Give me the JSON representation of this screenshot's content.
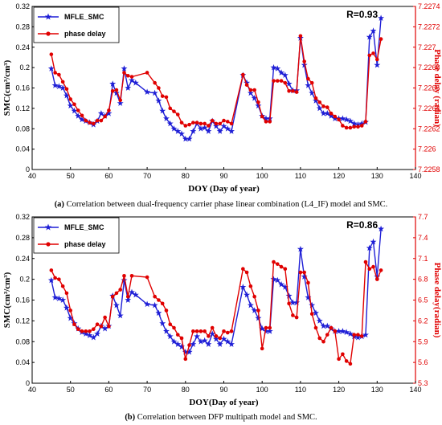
{
  "colors": {
    "smc": "#1f1fd6",
    "phase": "#e00000",
    "axis": "#000000",
    "right_axis": "#e00000"
  },
  "chart_data": [
    {
      "type": "line",
      "xlabel": "DOY (Day of year)",
      "ylabel": "SMC(cm³/cm³)",
      "ylabel_right": "Phase delay (radian)",
      "xlim": [
        40,
        140
      ],
      "ylim": [
        0,
        0.32
      ],
      "ylim_right": [
        7.2258,
        7.2274
      ],
      "xticks": [
        "40",
        "50",
        "60",
        "70",
        "80",
        "90",
        "100",
        "110",
        "120",
        "130",
        "140"
      ],
      "yticks": [
        "0",
        "0.04",
        "0.08",
        "0.12",
        "0.16",
        "0.2",
        "0.24",
        "0.28",
        "0.32"
      ],
      "yticks_right": [
        "7.2258",
        "7.226",
        "7.2262",
        "7.2264",
        "7.2266",
        "7.2268",
        "7.227",
        "7.2272",
        "7.2274"
      ],
      "annotation": "R=0.93",
      "legend_position": "top-left",
      "caption_label": "(a)",
      "caption": " Correlation between dual-frequency carrier phase linear combination (L4_IF) model and SMC.",
      "series": [
        {
          "name": "MFLE_SMC",
          "axis": "left",
          "marker": "star",
          "x": [
            45,
            46,
            47,
            48,
            49,
            50,
            51,
            52,
            53,
            54,
            55,
            56,
            57,
            58,
            59,
            60,
            61,
            62,
            63,
            64,
            65,
            66,
            67,
            70,
            72,
            73,
            74,
            75,
            76,
            77,
            78,
            79,
            80,
            81,
            82,
            83,
            84,
            85,
            86,
            87,
            88,
            89,
            90,
            91,
            92,
            95,
            96,
            97,
            98,
            99,
            100,
            101,
            102,
            103,
            104,
            105,
            106,
            107,
            108,
            109,
            110,
            111,
            112,
            113,
            114,
            115,
            116,
            117,
            118,
            119,
            120,
            121,
            122,
            123,
            124,
            125,
            126,
            127,
            128,
            129,
            130,
            131
          ],
          "y": [
            0.198,
            0.165,
            0.163,
            0.16,
            0.145,
            0.125,
            0.115,
            0.105,
            0.098,
            0.095,
            0.092,
            0.088,
            0.095,
            0.11,
            0.105,
            0.11,
            0.168,
            0.15,
            0.13,
            0.198,
            0.16,
            0.175,
            0.17,
            0.152,
            0.15,
            0.135,
            0.115,
            0.1,
            0.09,
            0.08,
            0.075,
            0.07,
            0.06,
            0.06,
            0.075,
            0.09,
            0.08,
            0.082,
            0.075,
            0.095,
            0.085,
            0.075,
            0.085,
            0.08,
            0.075,
            0.185,
            0.17,
            0.15,
            0.14,
            0.125,
            0.105,
            0.1,
            0.1,
            0.2,
            0.198,
            0.19,
            0.185,
            0.168,
            0.155,
            0.155,
            0.258,
            0.205,
            0.165,
            0.15,
            0.135,
            0.12,
            0.11,
            0.11,
            0.105,
            0.1,
            0.1,
            0.1,
            0.098,
            0.095,
            0.09,
            0.088,
            0.09,
            0.093,
            0.26,
            0.272,
            0.205,
            0.297
          ]
        },
        {
          "name": "phase delay",
          "axis": "right",
          "marker": "circle",
          "x": [
            45,
            46,
            47,
            48,
            49,
            50,
            51,
            52,
            53,
            54,
            55,
            56,
            57,
            58,
            59,
            60,
            61,
            62,
            63,
            64,
            65,
            66,
            70,
            72,
            73,
            74,
            75,
            76,
            77,
            78,
            79,
            80,
            81,
            82,
            83,
            84,
            85,
            86,
            87,
            88,
            89,
            90,
            91,
            92,
            95,
            96,
            97,
            98,
            99,
            100,
            101,
            102,
            103,
            104,
            105,
            106,
            107,
            108,
            109,
            110,
            111,
            112,
            113,
            114,
            115,
            116,
            117,
            118,
            119,
            120,
            121,
            122,
            123,
            124,
            125,
            126,
            127,
            128,
            129,
            130,
            131
          ],
          "y": [
            7.22693,
            7.22675,
            7.22673,
            7.22666,
            7.22659,
            7.22649,
            7.22644,
            7.22638,
            7.22633,
            7.22628,
            7.22626,
            7.22625,
            7.22628,
            7.22628,
            7.22632,
            7.22638,
            7.22657,
            7.22658,
            7.22648,
            7.22675,
            7.22672,
            7.22671,
            7.22675,
            7.22665,
            7.2266,
            7.22652,
            7.22651,
            7.2264,
            7.22637,
            7.22634,
            7.22626,
            7.22623,
            7.22624,
            7.22626,
            7.22626,
            7.22625,
            7.22625,
            7.22623,
            7.22628,
            7.22625,
            7.22625,
            7.22628,
            7.22627,
            7.22625,
            7.22673,
            7.22663,
            7.22658,
            7.22658,
            7.22646,
            7.22632,
            7.22627,
            7.22627,
            7.22667,
            7.22667,
            7.22667,
            7.22665,
            7.22657,
            7.22657,
            7.22656,
            7.22711,
            7.22686,
            7.22669,
            7.22665,
            7.2265,
            7.22646,
            7.22642,
            7.22641,
            7.22635,
            7.22632,
            7.22629,
            7.22623,
            7.22621,
            7.22621,
            7.22622,
            7.22622,
            7.22623,
            7.22627,
            7.22692,
            7.22694,
            7.22688,
            7.22708
          ]
        }
      ]
    },
    {
      "type": "line",
      "xlabel": "DOY(Day of year)",
      "ylabel": "SMC(cm³/cm³)",
      "ylabel_right": "Phase delay(radian)",
      "xlim": [
        40,
        140
      ],
      "ylim": [
        0,
        0.32
      ],
      "ylim_right": [
        5.3,
        7.7
      ],
      "xticks": [
        "40",
        "50",
        "60",
        "70",
        "80",
        "90",
        "100",
        "110",
        "120",
        "130",
        "140"
      ],
      "yticks": [
        "0",
        "0.04",
        "0.08",
        "0.12",
        "0.16",
        "0.2",
        "0.24",
        "0.28",
        "0.32"
      ],
      "yticks_right": [
        "5.3",
        "5.6",
        "5.9",
        "6.2",
        "6.5",
        "6.8",
        "7.1",
        "7.4",
        "7.7"
      ],
      "annotation": "R=0.86",
      "legend_position": "top-left",
      "caption_label": "(b)",
      "caption": " Correlation between DFP multipath model and SMC.",
      "series": [
        {
          "name": "MFLE_SMC",
          "axis": "left",
          "marker": "star",
          "x": [
            45,
            46,
            47,
            48,
            49,
            50,
            51,
            52,
            53,
            54,
            55,
            56,
            57,
            58,
            59,
            60,
            61,
            62,
            63,
            64,
            65,
            66,
            67,
            70,
            72,
            73,
            74,
            75,
            76,
            77,
            78,
            79,
            80,
            81,
            82,
            83,
            84,
            85,
            86,
            87,
            88,
            89,
            90,
            91,
            92,
            95,
            96,
            97,
            98,
            99,
            100,
            101,
            102,
            103,
            104,
            105,
            106,
            107,
            108,
            109,
            110,
            111,
            112,
            113,
            114,
            115,
            116,
            117,
            118,
            119,
            120,
            121,
            122,
            123,
            124,
            125,
            126,
            127,
            128,
            129,
            130,
            131
          ],
          "y": [
            0.198,
            0.165,
            0.163,
            0.16,
            0.145,
            0.125,
            0.115,
            0.105,
            0.098,
            0.095,
            0.092,
            0.088,
            0.095,
            0.11,
            0.105,
            0.11,
            0.168,
            0.15,
            0.13,
            0.198,
            0.16,
            0.175,
            0.17,
            0.152,
            0.15,
            0.135,
            0.115,
            0.1,
            0.09,
            0.08,
            0.075,
            0.07,
            0.06,
            0.06,
            0.075,
            0.09,
            0.08,
            0.082,
            0.075,
            0.095,
            0.085,
            0.075,
            0.085,
            0.08,
            0.075,
            0.185,
            0.17,
            0.15,
            0.14,
            0.125,
            0.105,
            0.1,
            0.1,
            0.2,
            0.198,
            0.19,
            0.185,
            0.168,
            0.155,
            0.155,
            0.258,
            0.205,
            0.165,
            0.15,
            0.135,
            0.12,
            0.11,
            0.11,
            0.105,
            0.1,
            0.1,
            0.1,
            0.098,
            0.095,
            0.09,
            0.088,
            0.09,
            0.093,
            0.26,
            0.272,
            0.205,
            0.297
          ]
        },
        {
          "name": "phase delay",
          "axis": "right",
          "marker": "circle",
          "x": [
            45,
            46,
            47,
            48,
            49,
            50,
            51,
            52,
            53,
            54,
            55,
            56,
            57,
            58,
            59,
            60,
            61,
            62,
            63,
            64,
            65,
            66,
            70,
            72,
            73,
            74,
            75,
            76,
            77,
            78,
            79,
            80,
            81,
            82,
            83,
            84,
            85,
            86,
            87,
            88,
            89,
            90,
            91,
            92,
            95,
            96,
            97,
            98,
            99,
            100,
            101,
            102,
            103,
            104,
            105,
            106,
            107,
            108,
            109,
            110,
            111,
            112,
            113,
            114,
            115,
            116,
            117,
            118,
            119,
            120,
            121,
            122,
            123,
            124,
            125,
            126,
            127,
            128,
            129,
            130,
            131
          ],
          "y": [
            6.93,
            6.82,
            6.8,
            6.7,
            6.6,
            6.35,
            6.15,
            6.08,
            6.05,
            6.05,
            6.05,
            6.08,
            6.15,
            6.12,
            6.25,
            6.12,
            6.55,
            6.6,
            6.65,
            6.85,
            6.55,
            6.85,
            6.83,
            6.55,
            6.5,
            6.45,
            6.35,
            6.15,
            6.1,
            6.0,
            5.95,
            5.65,
            5.85,
            6.05,
            6.05,
            6.05,
            6.05,
            5.98,
            6.1,
            5.98,
            5.95,
            6.05,
            6.03,
            6.05,
            6.95,
            6.9,
            6.7,
            6.55,
            6.35,
            5.8,
            6.1,
            6.1,
            7.05,
            7.02,
            6.98,
            6.95,
            6.45,
            6.28,
            6.25,
            6.9,
            6.9,
            6.75,
            6.3,
            6.1,
            5.95,
            5.9,
            6.0,
            6.1,
            6.05,
            5.65,
            5.72,
            5.62,
            5.58,
            6.0,
            6.0,
            5.98,
            7.05,
            6.95,
            6.98,
            6.8,
            6.93
          ]
        }
      ]
    }
  ]
}
